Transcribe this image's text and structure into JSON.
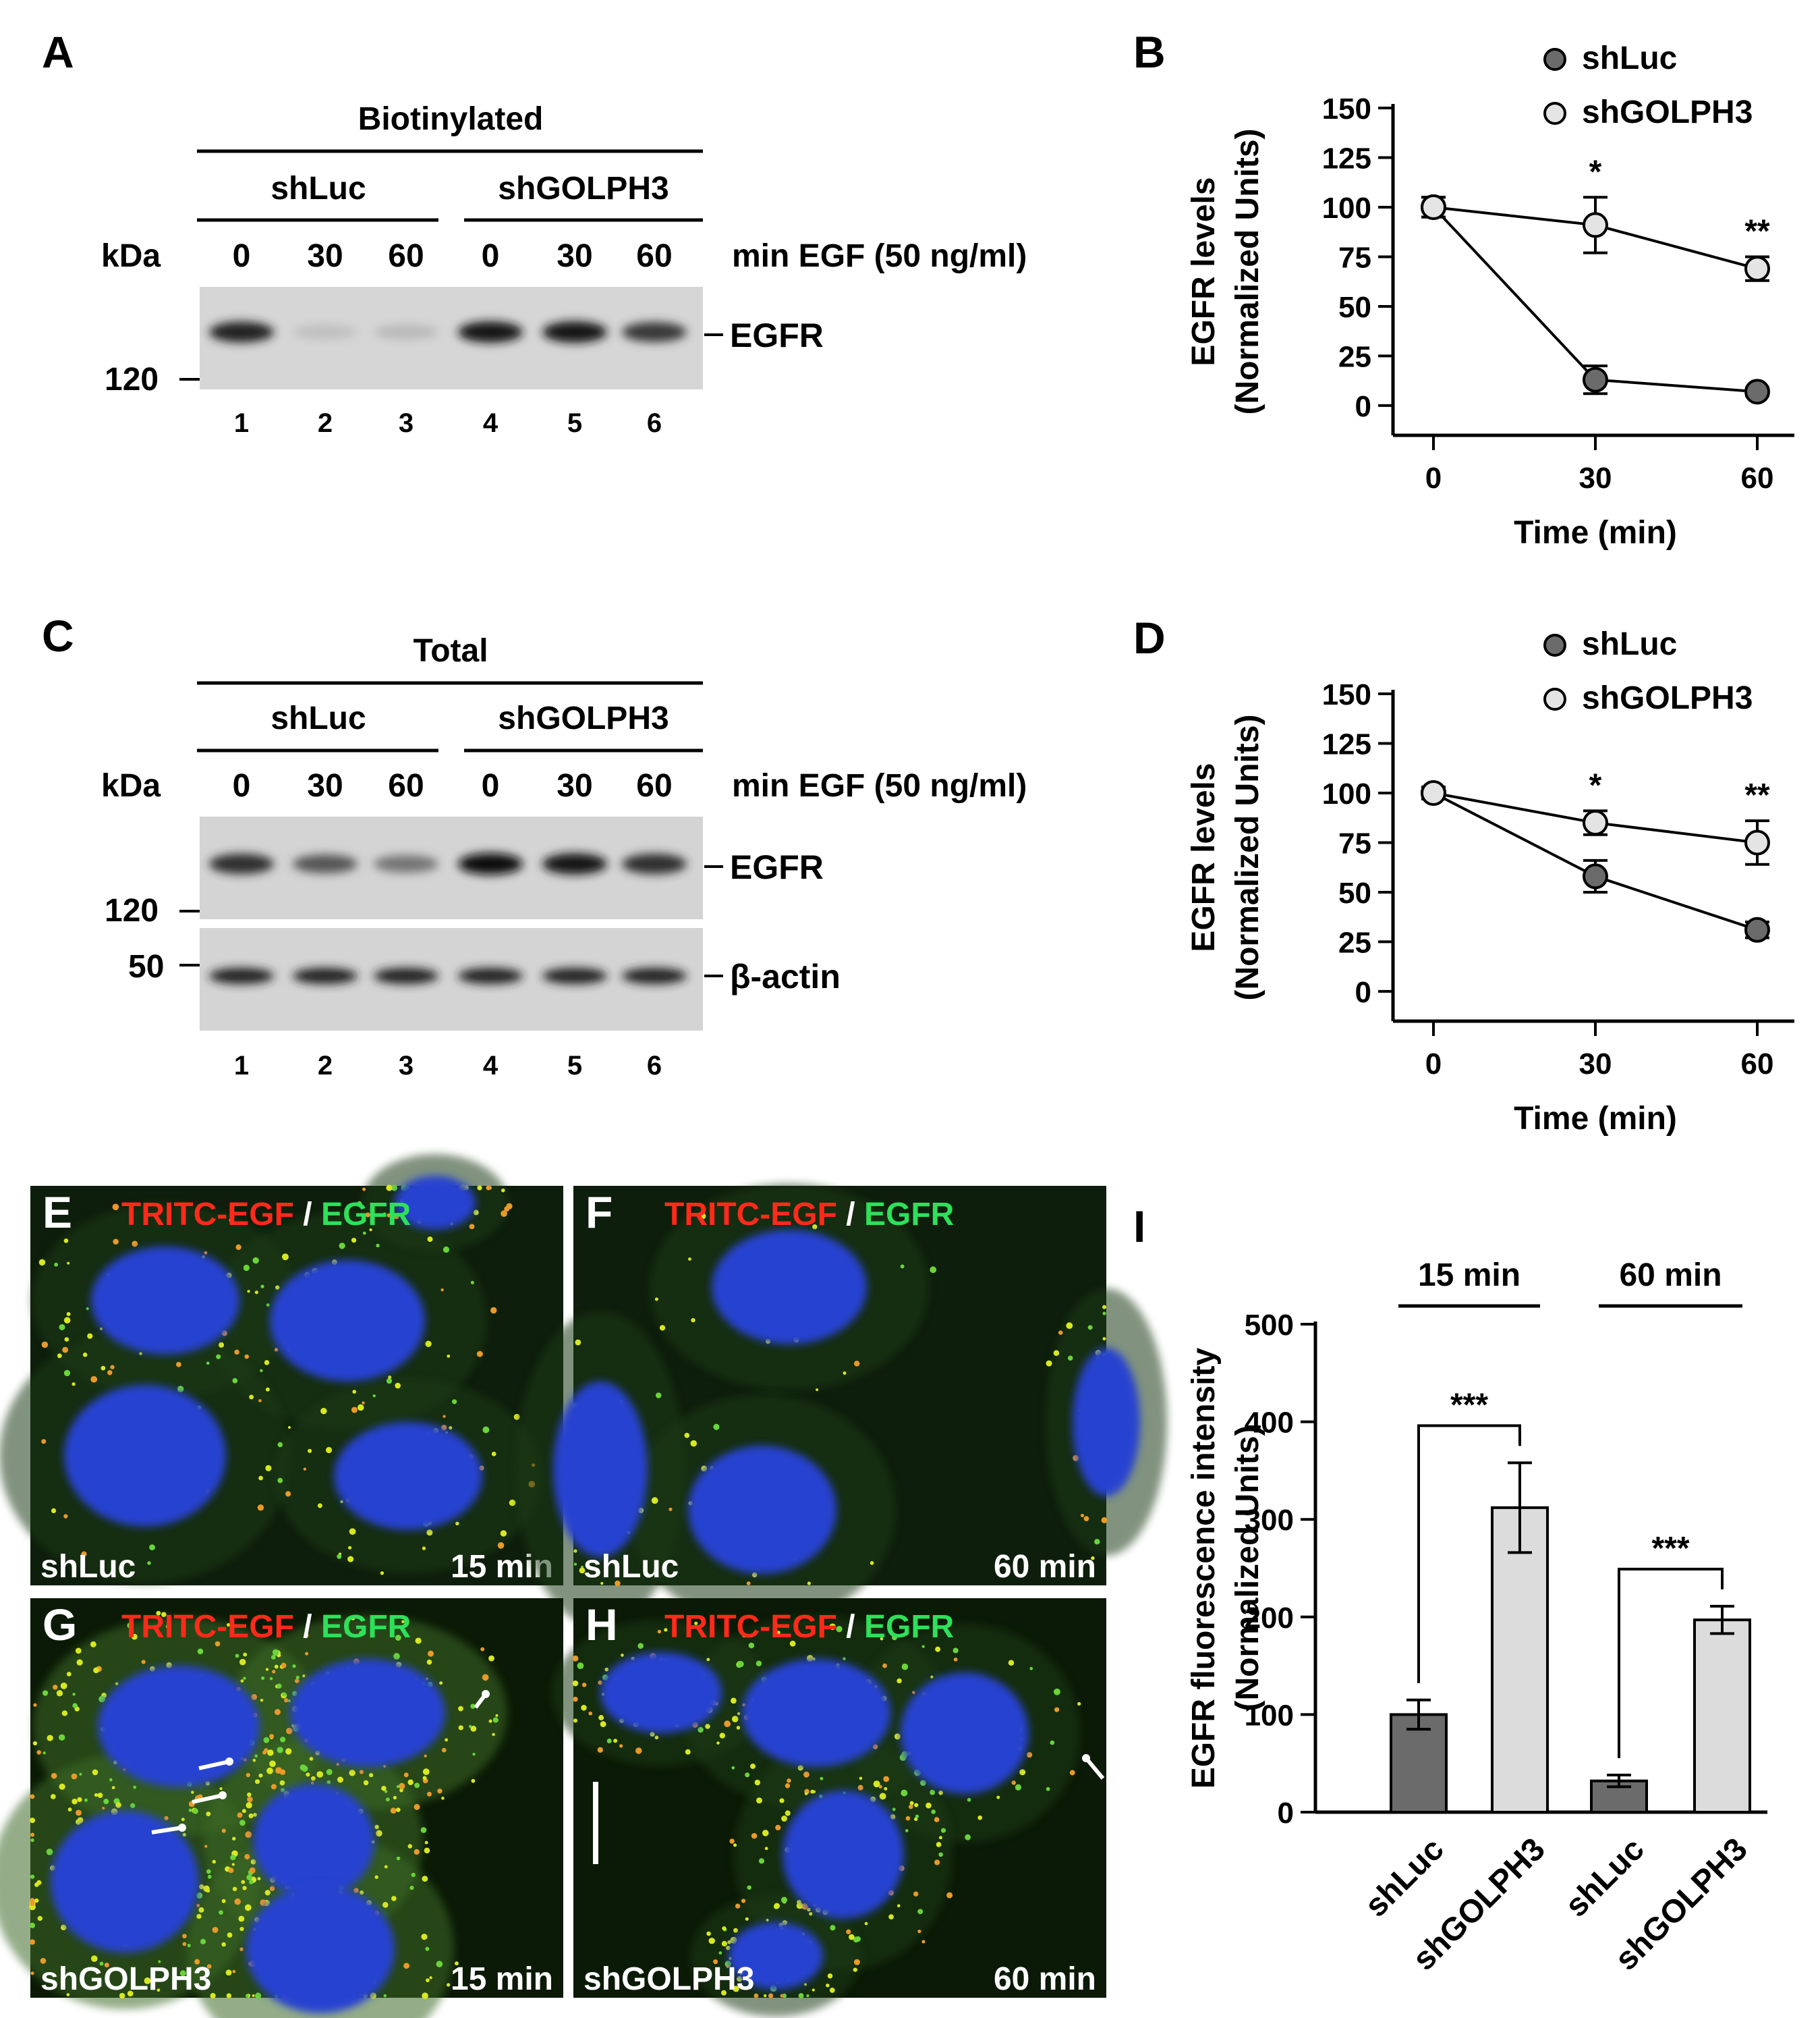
{
  "panels": {
    "A": {
      "letter": "A",
      "header": "Biotinylated",
      "groups": [
        "shLuc",
        "shGOLPH3"
      ],
      "kda_label": "kDa",
      "time_labels": [
        "0",
        "30",
        "60",
        "0",
        "30",
        "60"
      ],
      "treatment": "min EGF (50 ng/ml)",
      "band_label": "EGFR",
      "marker": "120",
      "lanes": [
        "1",
        "2",
        "3",
        "4",
        "5",
        "6"
      ],
      "band_intensities": [
        0.9,
        0.12,
        0.15,
        0.95,
        0.97,
        0.8
      ]
    },
    "C": {
      "letter": "C",
      "header": "Total",
      "groups": [
        "shLuc",
        "shGOLPH3"
      ],
      "kda_label": "kDa",
      "time_labels": [
        "0",
        "30",
        "60",
        "0",
        "30",
        "60"
      ],
      "treatment": "min EGF (50 ng/ml)",
      "band_label": "EGFR",
      "band_label2": "β-actin",
      "marker": "120",
      "marker2": "50",
      "lanes": [
        "1",
        "2",
        "3",
        "4",
        "5",
        "6"
      ],
      "band_intensities": [
        0.85,
        0.65,
        0.5,
        1.0,
        0.95,
        0.85
      ],
      "actin_intensities": [
        0.9,
        0.9,
        0.9,
        0.9,
        0.9,
        0.9
      ]
    },
    "E": {
      "letter": "E",
      "stain1": "TRITC-EGF",
      "sep": " / ",
      "stain2": "EGFR",
      "condition": "shLuc",
      "time": "15 min"
    },
    "F": {
      "letter": "F",
      "stain1": "TRITC-EGF",
      "sep": " / ",
      "stain2": "EGFR",
      "condition": "shLuc",
      "time": "60 min"
    },
    "G": {
      "letter": "G",
      "stain1": "TRITC-EGF",
      "sep": " / ",
      "stain2": "EGFR",
      "condition": "shGOLPH3",
      "time": "15 min"
    },
    "H": {
      "letter": "H",
      "stain1": "TRITC-EGF",
      "sep": " / ",
      "stain2": "EGFR",
      "condition": "shGOLPH3",
      "time": "60 min"
    },
    "I": {
      "letter": "I"
    },
    "B": {
      "letter": "B"
    },
    "D": {
      "letter": "D"
    }
  },
  "chart_data": [
    {
      "panel": "B",
      "type": "line",
      "x": [
        0,
        30,
        60
      ],
      "series": [
        {
          "name": "shLuc",
          "values": [
            100,
            13,
            7
          ],
          "errors": [
            5,
            7,
            2
          ],
          "color": "#6b6b6b"
        },
        {
          "name": "shGOLPH3",
          "values": [
            100,
            91,
            69
          ],
          "errors": [
            5,
            14,
            6
          ],
          "color": "#e4e4e4"
        }
      ],
      "significance": [
        {
          "x": 30,
          "label": "*"
        },
        {
          "x": 60,
          "label": "**"
        }
      ],
      "xlabel": "Time (min)",
      "ylabel": "EGFR levels",
      "ylabel2": "(Normalized Units)",
      "yticks": [
        0,
        25,
        50,
        75,
        100,
        125,
        150
      ],
      "xticks": [
        0,
        30,
        60
      ],
      "ylim": [
        -15,
        150
      ],
      "legend": "top-right"
    },
    {
      "panel": "D",
      "type": "line",
      "x": [
        0,
        30,
        60
      ],
      "series": [
        {
          "name": "shLuc",
          "values": [
            100,
            58,
            31
          ],
          "errors": [
            3,
            8,
            4
          ],
          "color": "#6b6b6b"
        },
        {
          "name": "shGOLPH3",
          "values": [
            100,
            85,
            75
          ],
          "errors": [
            3,
            6,
            11
          ],
          "color": "#e4e4e4"
        }
      ],
      "significance": [
        {
          "x": 30,
          "label": "*"
        },
        {
          "x": 60,
          "label": "**"
        }
      ],
      "xlabel": "Time (min)",
      "ylabel": "EGFR levels",
      "ylabel2": "(Normalized Units)",
      "yticks": [
        0,
        25,
        50,
        75,
        100,
        125,
        150
      ],
      "xticks": [
        0,
        30,
        60
      ],
      "ylim": [
        -15,
        150
      ],
      "legend": "top-right"
    },
    {
      "panel": "I",
      "type": "bar",
      "categories": [
        "shLuc",
        "shGOLPH3",
        "shLuc",
        "shGOLPH3"
      ],
      "values": [
        100,
        312,
        32,
        197
      ],
      "errors": [
        15,
        46,
        6,
        14
      ],
      "colors": [
        "#6b6b6b",
        "#dcdcdc",
        "#6b6b6b",
        "#dcdcdc"
      ],
      "groups": [
        {
          "label": "15 min",
          "bars": [
            0,
            1
          ]
        },
        {
          "label": "60 min",
          "bars": [
            2,
            3
          ]
        }
      ],
      "significance": [
        {
          "bars": [
            0,
            1
          ],
          "label": "***"
        },
        {
          "bars": [
            2,
            3
          ],
          "label": "***"
        }
      ],
      "ylabel": "EGFR fluorescence intensity",
      "ylabel2": "(Normalized Units)",
      "yticks": [
        0,
        100,
        200,
        300,
        400,
        500
      ],
      "ylim": [
        0,
        500
      ]
    }
  ]
}
